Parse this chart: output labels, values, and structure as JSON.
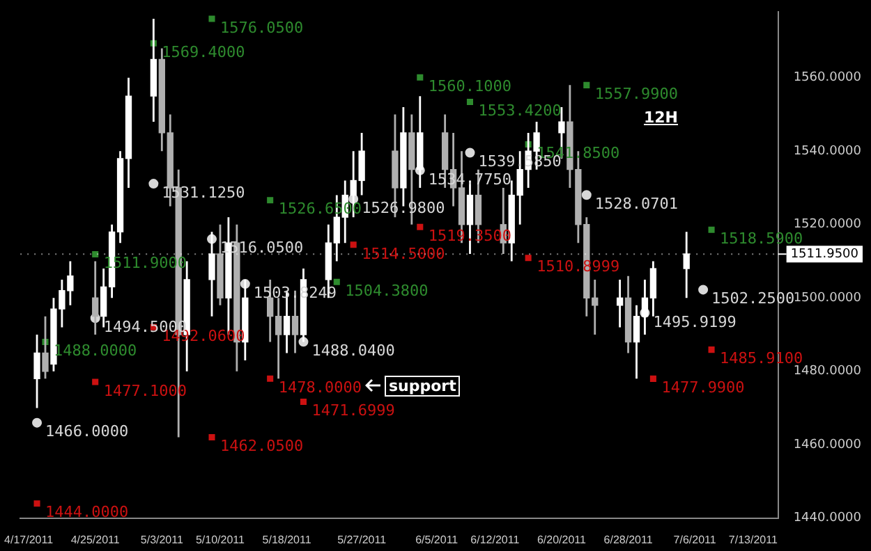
{
  "chart_data": {
    "type": "candlestick",
    "annotations": [
      "12H",
      "support"
    ],
    "xlim": [
      "2011-04-16",
      "2011-07-16"
    ],
    "xticks": [
      {
        "value": "2011-04-17",
        "label": "4/17/2011"
      },
      {
        "value": "2011-04-25",
        "label": "4/25/2011"
      },
      {
        "value": "2011-05-03",
        "label": "5/3/2011"
      },
      {
        "value": "2011-05-10",
        "label": "5/10/2011"
      },
      {
        "value": "2011-05-18",
        "label": "5/18/2011"
      },
      {
        "value": "2011-05-27",
        "label": "5/27/2011"
      },
      {
        "value": "2011-06-05",
        "label": "6/5/2011"
      },
      {
        "value": "2011-06-12",
        "label": "6/12/2011"
      },
      {
        "value": "2011-06-20",
        "label": "6/20/2011"
      },
      {
        "value": "2011-06-28",
        "label": "6/28/2011"
      },
      {
        "value": "2011-07-06",
        "label": "7/6/2011"
      },
      {
        "value": "2011-07-13",
        "label": "7/13/2011"
      }
    ],
    "ylim": [
      1440,
      1578
    ],
    "yticks": [
      {
        "value": 1440,
        "label": "1440.0000"
      },
      {
        "value": 1460,
        "label": "1460.0000"
      },
      {
        "value": 1480,
        "label": "1480.0000"
      },
      {
        "value": 1500,
        "label": "1500.0000"
      },
      {
        "value": 1520,
        "label": "1520.0000"
      },
      {
        "value": 1540,
        "label": "1540.0000"
      },
      {
        "value": 1560,
        "label": "1560.0000"
      }
    ],
    "ref_lines": [
      {
        "axis": "y",
        "value": 1511.95,
        "label": "1511.9500",
        "color": "#ffffff"
      }
    ],
    "grid": false,
    "legend": false,
    "series": [
      {
        "type": "candlestick",
        "colors": [
          "#ffffff",
          "#b0b0b0",
          "#ffffff",
          "#ffffff",
          "#ffffff",
          "#b0b0b0",
          "#ffffff",
          "#ffffff",
          "#ffffff",
          "#ffffff",
          "#ffffff",
          "#b0b0b0",
          "#b0b0b0",
          "#b0b0b0",
          "#ffffff",
          "#ffffff",
          "#b0b0b0",
          "#ffffff",
          "#b0b0b0",
          "#ffffff",
          "#b0b0b0",
          "#b0b0b0",
          "#ffffff",
          "#b0b0b0",
          "#ffffff",
          "#ffffff",
          "#ffffff",
          "#ffffff",
          "#ffffff",
          "#ffffff",
          "#b0b0b0",
          "#ffffff",
          "#b0b0b0",
          "#ffffff",
          "#b0b0b0",
          "#b0b0b0",
          "#b0b0b0",
          "#ffffff",
          "#b0b0b0",
          "#b0b0b0",
          "#ffffff",
          "#ffffff",
          "#ffffff",
          "#ffffff",
          "#ffffff",
          "#b0b0b0",
          "#b0b0b0",
          "#b0b0b0",
          "#b0b0b0",
          "#ffffff",
          "#b0b0b0",
          "#ffffff",
          "#ffffff",
          "#ffffff",
          "#ffffff"
        ],
        "x": [
          "2011-04-18",
          "2011-04-19",
          "2011-04-20",
          "2011-04-21",
          "2011-04-22",
          "2011-04-25",
          "2011-04-26",
          "2011-04-27",
          "2011-04-28",
          "2011-04-29",
          "2011-05-02",
          "2011-05-03",
          "2011-05-04",
          "2011-05-05",
          "2011-05-06",
          "2011-05-09",
          "2011-05-10",
          "2011-05-11",
          "2011-05-12",
          "2011-05-13",
          "2011-05-16",
          "2011-05-17",
          "2011-05-18",
          "2011-05-19",
          "2011-05-20",
          "2011-05-23",
          "2011-05-24",
          "2011-05-25",
          "2011-05-26",
          "2011-05-27",
          "2011-05-31",
          "2011-06-01",
          "2011-06-02",
          "2011-06-03",
          "2011-06-06",
          "2011-06-07",
          "2011-06-08",
          "2011-06-09",
          "2011-06-10",
          "2011-06-13",
          "2011-06-14",
          "2011-06-15",
          "2011-06-16",
          "2011-06-17",
          "2011-06-20",
          "2011-06-21",
          "2011-06-22",
          "2011-06-23",
          "2011-06-24",
          "2011-06-27",
          "2011-06-28",
          "2011-06-29",
          "2011-06-30",
          "2011-07-01",
          "2011-07-05"
        ],
        "ohlc": [
          [
            1478,
            1490,
            1470,
            1485
          ],
          [
            1485,
            1495,
            1478,
            1480
          ],
          [
            1482,
            1500,
            1480,
            1497
          ],
          [
            1497,
            1505,
            1492,
            1502
          ],
          [
            1502,
            1510,
            1498,
            1506
          ],
          [
            1500,
            1510,
            1490,
            1495
          ],
          [
            1495,
            1508,
            1492,
            1503
          ],
          [
            1503,
            1520,
            1500,
            1518
          ],
          [
            1518,
            1540,
            1515,
            1538
          ],
          [
            1538,
            1560,
            1530,
            1555
          ],
          [
            1555,
            1576.05,
            1548,
            1565
          ],
          [
            1565,
            1568,
            1540,
            1545
          ],
          [
            1545,
            1550,
            1525,
            1530
          ],
          [
            1530,
            1535,
            1462.05,
            1490
          ],
          [
            1490,
            1510,
            1480,
            1505
          ],
          [
            1505,
            1518,
            1495,
            1512
          ],
          [
            1512,
            1520,
            1498,
            1500
          ],
          [
            1500,
            1522,
            1490,
            1515
          ],
          [
            1515,
            1520,
            1480,
            1488
          ],
          [
            1488,
            1505,
            1483,
            1500
          ],
          [
            1500,
            1505,
            1488,
            1495
          ],
          [
            1495,
            1500,
            1478,
            1490
          ],
          [
            1490,
            1502,
            1485,
            1495
          ],
          [
            1495,
            1502,
            1485,
            1490
          ],
          [
            1490,
            1508,
            1488,
            1505
          ],
          [
            1505,
            1520,
            1500,
            1515
          ],
          [
            1515,
            1528,
            1510,
            1522
          ],
          [
            1522,
            1532,
            1515,
            1528
          ],
          [
            1528,
            1540,
            1522,
            1532
          ],
          [
            1532,
            1545,
            1528,
            1540
          ],
          [
            1540,
            1550,
            1522,
            1530
          ],
          [
            1530,
            1552,
            1525,
            1545
          ],
          [
            1545,
            1550,
            1520,
            1535
          ],
          [
            1535,
            1555,
            1530,
            1545
          ],
          [
            1545,
            1550,
            1530,
            1535
          ],
          [
            1535,
            1545,
            1525,
            1530
          ],
          [
            1530,
            1540,
            1515,
            1520
          ],
          [
            1520,
            1532,
            1512,
            1528
          ],
          [
            1528,
            1535,
            1515,
            1520
          ],
          [
            1520,
            1530,
            1512,
            1515
          ],
          [
            1515,
            1532,
            1510,
            1528
          ],
          [
            1528,
            1540,
            1520,
            1535
          ],
          [
            1535,
            1545,
            1530,
            1540
          ],
          [
            1540,
            1548,
            1535,
            1545
          ],
          [
            1545,
            1552,
            1538,
            1548
          ],
          [
            1548,
            1558,
            1530,
            1535
          ],
          [
            1535,
            1540,
            1515,
            1520
          ],
          [
            1520,
            1522,
            1495,
            1500
          ],
          [
            1500,
            1505,
            1490,
            1498
          ],
          [
            1498,
            1505,
            1492,
            1500
          ],
          [
            1500,
            1506,
            1485,
            1488
          ],
          [
            1488,
            1498,
            1478,
            1495
          ],
          [
            1495,
            1505,
            1490,
            1500
          ],
          [
            1500,
            1510,
            1495,
            1508
          ],
          [
            1508,
            1518,
            1500,
            1512
          ]
        ]
      },
      {
        "type": "scatter",
        "color": "#2e8b2e",
        "marker": "square",
        "x": [
          "2011-05-09",
          "2011-05-02",
          "2011-04-25",
          "2011-04-19",
          "2011-05-16",
          "2011-05-24",
          "2011-06-09",
          "2011-06-03",
          "2011-06-16",
          "2011-06-23",
          "2011-07-08"
        ],
        "values": [
          1576.05,
          1569.4,
          1511.9,
          1488,
          1526.65,
          1504.38,
          1553.42,
          1560.1,
          1541.85,
          1557.99,
          1518.59
        ],
        "value_labels": [
          "1576.0500",
          "1569.4000",
          "1511.9000",
          "1488.0000",
          "1526.6500",
          "1504.3800",
          "1553.4200",
          "1560.1000",
          "1541.8500",
          "1557.9900",
          "1518.5900"
        ]
      },
      {
        "type": "scatter",
        "color": "#cc1111",
        "marker": "square",
        "x": [
          "2011-04-25",
          "2011-05-02",
          "2011-05-09",
          "2011-05-16",
          "2011-05-20",
          "2011-04-18",
          "2011-05-26",
          "2011-06-03",
          "2011-06-16",
          "2011-07-08",
          "2011-07-01"
        ],
        "values": [
          1477.1,
          1492.06,
          1462.05,
          1478,
          1471.6999,
          1444,
          1514.5,
          1519.35,
          1510.8999,
          1485.91,
          1477.99
        ],
        "value_labels": [
          "1477.1000",
          "1492.0600",
          "1462.0500",
          "1478.0000",
          "1471.6999",
          "1444.0000",
          "1514.5000",
          "1519.3500",
          "1510.8999",
          "1485.9100",
          "1477.9900"
        ]
      },
      {
        "type": "scatter",
        "color": "#d8d8d8",
        "marker": "circle",
        "x": [
          "2011-04-18",
          "2011-04-25",
          "2011-05-02",
          "2011-05-09",
          "2011-05-13",
          "2011-05-20",
          "2011-05-26",
          "2011-06-03",
          "2011-06-09",
          "2011-06-23",
          "2011-06-30",
          "2011-07-07"
        ],
        "values": [
          1466,
          1494.5,
          1531.125,
          1516.05,
          1503.8249,
          1488.04,
          1526.98,
          1534.775,
          1539.585,
          1528.0701,
          1495.9199,
          1502.25
        ],
        "value_labels": [
          "1466.0000",
          "1494.5000",
          "1531.1250",
          "1516.0500",
          "1503.8249",
          "1488.0400",
          "1526.9800",
          "1534.7750",
          "1539.5850",
          "1528.0701",
          "1495.9199",
          "1502.2500"
        ]
      }
    ]
  }
}
